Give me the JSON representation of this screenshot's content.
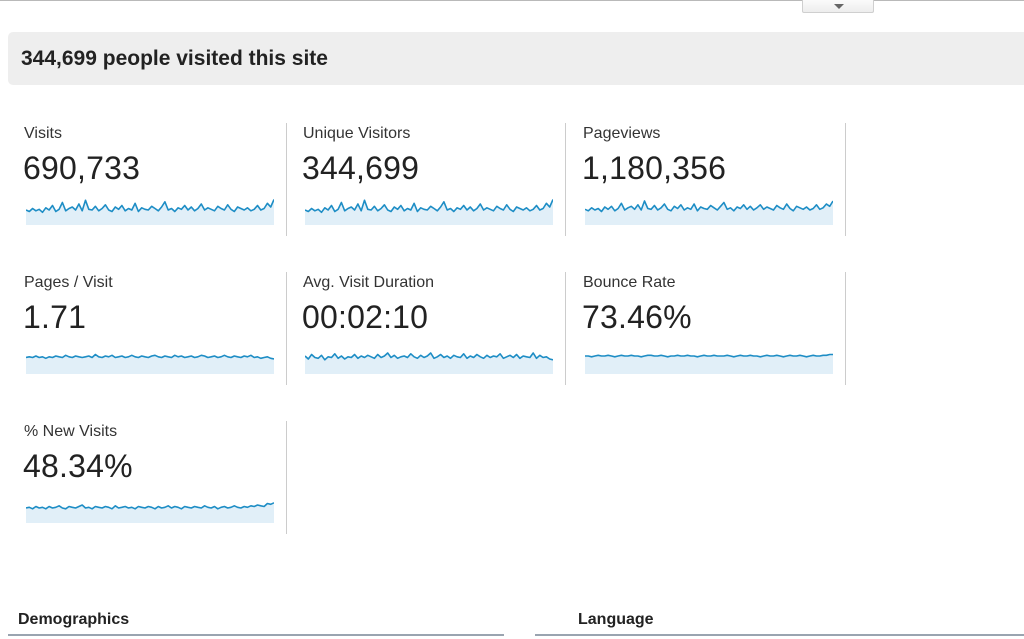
{
  "summary": {
    "headline": "344,699 people visited this site"
  },
  "metrics": [
    {
      "label": "Visits",
      "value": "690,733",
      "spark": [
        20,
        18,
        22,
        19,
        21,
        17,
        23,
        20,
        26,
        18,
        21,
        30,
        19,
        22,
        24,
        20,
        28,
        19,
        33,
        21,
        20,
        25,
        19,
        22,
        27,
        20,
        18,
        24,
        21,
        26,
        19,
        22,
        20,
        29,
        18,
        23,
        21,
        20,
        25,
        22,
        19,
        24,
        31,
        20,
        22,
        18,
        23,
        21,
        26,
        20,
        24,
        19,
        22,
        28,
        20,
        23,
        21,
        19,
        25,
        22,
        20,
        27,
        21,
        18,
        24,
        22,
        20,
        23,
        19,
        21,
        26,
        20,
        22,
        29,
        24,
        34
      ]
    },
    {
      "label": "Unique Visitors",
      "value": "344,699",
      "spark": [
        20,
        18,
        22,
        19,
        21,
        17,
        23,
        20,
        26,
        18,
        21,
        30,
        19,
        22,
        24,
        20,
        28,
        19,
        33,
        21,
        20,
        25,
        19,
        22,
        27,
        20,
        18,
        24,
        21,
        26,
        19,
        22,
        20,
        29,
        18,
        23,
        21,
        20,
        25,
        22,
        19,
        24,
        31,
        20,
        22,
        18,
        23,
        21,
        26,
        20,
        24,
        19,
        22,
        28,
        20,
        23,
        21,
        19,
        25,
        22,
        20,
        27,
        21,
        18,
        24,
        22,
        20,
        23,
        19,
        21,
        26,
        20,
        22,
        29,
        24,
        34
      ]
    },
    {
      "label": "Pageviews",
      "value": "1,180,356",
      "spark": [
        21,
        19,
        23,
        20,
        22,
        18,
        24,
        21,
        25,
        19,
        22,
        29,
        20,
        23,
        25,
        21,
        27,
        20,
        32,
        22,
        21,
        26,
        20,
        23,
        28,
        21,
        19,
        25,
        22,
        27,
        20,
        23,
        21,
        28,
        19,
        24,
        22,
        21,
        26,
        23,
        20,
        25,
        30,
        21,
        23,
        19,
        24,
        22,
        27,
        21,
        25,
        20,
        23,
        27,
        21,
        24,
        22,
        20,
        26,
        23,
        21,
        28,
        22,
        19,
        25,
        23,
        21,
        24,
        20,
        22,
        27,
        21,
        23,
        28,
        25,
        32
      ]
    },
    {
      "label": "Pages / Visit",
      "value": "1.71",
      "spark": [
        22,
        23,
        22,
        24,
        22,
        23,
        21,
        23,
        22,
        24,
        23,
        22,
        25,
        23,
        22,
        24,
        23,
        22,
        23,
        24,
        22,
        26,
        23,
        22,
        24,
        23,
        25,
        22,
        23,
        24,
        22,
        23,
        25,
        23,
        22,
        24,
        23,
        22,
        24,
        25,
        23,
        22,
        24,
        23,
        22,
        25,
        23,
        24,
        22,
        23,
        24,
        22,
        23,
        25,
        24,
        22,
        23,
        24,
        22,
        23,
        25,
        23,
        22,
        24,
        23,
        22,
        24,
        23,
        25,
        22,
        23,
        21,
        22,
        23,
        21,
        20
      ]
    },
    {
      "label": "Avg. Visit Duration",
      "value": "00:02:10",
      "spark": [
        24,
        20,
        26,
        22,
        21,
        25,
        19,
        23,
        22,
        27,
        21,
        24,
        20,
        23,
        22,
        26,
        21,
        24,
        22,
        25,
        23,
        21,
        26,
        22,
        24,
        28,
        22,
        25,
        21,
        23,
        24,
        22,
        27,
        23,
        21,
        25,
        22,
        24,
        28,
        21,
        23,
        26,
        22,
        24,
        21,
        25,
        23,
        22,
        27,
        21,
        24,
        22,
        26,
        23,
        21,
        25,
        22,
        24,
        23,
        27,
        21,
        23,
        25,
        22,
        26,
        21,
        24,
        23,
        22,
        28,
        21,
        25,
        22,
        23,
        20,
        19
      ]
    },
    {
      "label": "Bounce Rate",
      "value": "73.46%",
      "spark": [
        24,
        24,
        23,
        24,
        25,
        24,
        24,
        25,
        24,
        23,
        24,
        25,
        24,
        24,
        25,
        24,
        24,
        23,
        24,
        25,
        25,
        24,
        24,
        25,
        24,
        23,
        24,
        24,
        25,
        24,
        24,
        25,
        24,
        24,
        23,
        24,
        25,
        24,
        24,
        25,
        24,
        24,
        24,
        25,
        24,
        23,
        24,
        25,
        24,
        24,
        25,
        24,
        24,
        23,
        24,
        25,
        24,
        24,
        25,
        24,
        23,
        24,
        25,
        24,
        24,
        25,
        24,
        23,
        24,
        25,
        24,
        24,
        25,
        25,
        26,
        26
      ]
    },
    {
      "label": "% New Visits",
      "value": "48.34%",
      "spark": [
        20,
        21,
        19,
        22,
        20,
        21,
        19,
        22,
        20,
        21,
        23,
        20,
        19,
        22,
        21,
        20,
        22,
        24,
        20,
        21,
        19,
        22,
        21,
        20,
        22,
        21,
        19,
        23,
        20,
        21,
        22,
        20,
        21,
        19,
        22,
        21,
        20,
        22,
        21,
        19,
        22,
        20,
        21,
        23,
        20,
        22,
        21,
        19,
        22,
        21,
        20,
        22,
        21,
        20,
        23,
        21,
        20,
        22,
        19,
        21,
        22,
        20,
        21,
        23,
        21,
        20,
        22,
        21,
        23,
        22,
        24,
        23,
        22,
        26,
        25,
        27
      ]
    }
  ],
  "sections": {
    "demographics": "Demographics",
    "language": "Language"
  },
  "colors": {
    "spark_line": "#1d8dc5",
    "spark_fill": "#e1eff8",
    "banner_bg": "#eeeeee"
  }
}
